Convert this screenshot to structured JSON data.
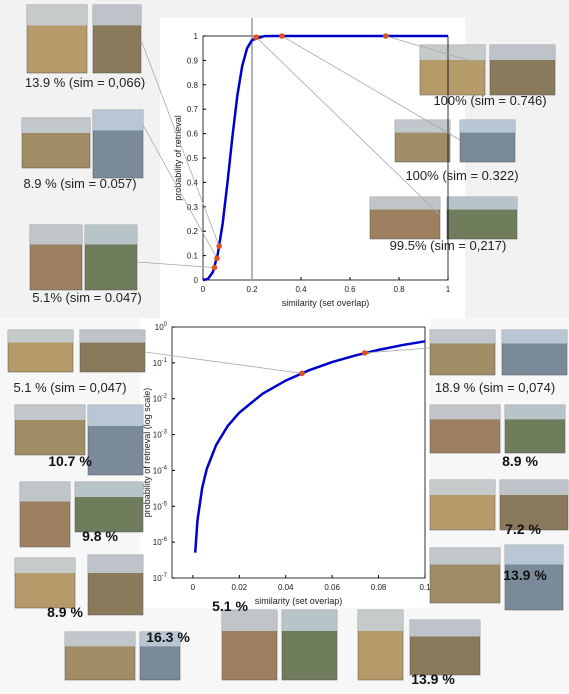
{
  "chart_data": [
    {
      "type": "line",
      "xlabel": "similarity (set overlap)",
      "ylabel": "probability of retrieval",
      "xlim": [
        0,
        1
      ],
      "ylim": [
        0,
        1
      ],
      "xticks": [
        0,
        0.2,
        0.4,
        0.6,
        0.8,
        1
      ],
      "yticks": [
        0,
        0.1,
        0.2,
        0.3,
        0.4,
        0.5,
        0.6,
        0.7,
        0.8,
        0.9,
        1
      ],
      "vline": 0.2,
      "series": [
        {
          "color": "#0000cc",
          "x": [
            0,
            0.02,
            0.04,
            0.06,
            0.08,
            0.1,
            0.12,
            0.14,
            0.16,
            0.18,
            0.2,
            0.25,
            0.3,
            0.4,
            0.5,
            0.6,
            0.7,
            0.8,
            0.9,
            1
          ],
          "values": [
            0,
            0.004,
            0.032,
            0.105,
            0.23,
            0.4,
            0.587,
            0.755,
            0.877,
            0.95,
            0.983,
            0.9997,
            1,
            1,
            1,
            1,
            1,
            1,
            1,
            1
          ]
        }
      ],
      "points": {
        "color": "#e05020",
        "x": [
          0.066,
          0.057,
          0.047,
          0.746,
          0.322,
          0.217
        ],
        "values": [
          0.139,
          0.089,
          0.051,
          1,
          1,
          0.995
        ]
      },
      "annotations": [
        "13.9 % (sim = 0,066)",
        "8.9 % (sim = 0.057)",
        "5.1% (sim = 0.047)",
        "100% (sim = 0.746)",
        "100% (sim = 0.322)",
        "99.5% (sim = 0,217)"
      ]
    },
    {
      "type": "line",
      "log_y": true,
      "xlabel": "similarity (set overlap)",
      "ylabel": "probability of retrieval (log scale)",
      "xlim": [
        -0.009,
        0.1
      ],
      "ylim": [
        1e-07,
        1
      ],
      "xticks": [
        0,
        0.02,
        0.04,
        0.06,
        0.08,
        0.1
      ],
      "yticks": [
        {
          "value": 1,
          "label": "10",
          "exponent": "0"
        },
        {
          "value": 0.1,
          "label": "10",
          "exponent": "-1"
        },
        {
          "value": 0.01,
          "label": "10",
          "exponent": "-2"
        },
        {
          "value": 0.001,
          "label": "10",
          "exponent": "-3"
        },
        {
          "value": 0.0001,
          "label": "10",
          "exponent": "-4"
        },
        {
          "value": 1e-05,
          "label": "10",
          "exponent": "-5"
        },
        {
          "value": 1e-06,
          "label": "10",
          "exponent": "-6"
        },
        {
          "value": 1e-07,
          "label": "10",
          "exponent": "-7"
        }
      ],
      "series": [
        {
          "color": "#0000cc",
          "x": [
            0.001,
            0.002,
            0.004,
            0.006,
            0.01,
            0.015,
            0.02,
            0.03,
            0.04,
            0.05,
            0.06,
            0.07,
            0.08,
            0.09,
            0.1
          ],
          "values": [
            5.1e-07,
            4.1e-06,
            3.3e-05,
            0.00011,
            0.00051,
            0.00173,
            0.0041,
            0.0137,
            0.032,
            0.062,
            0.105,
            0.161,
            0.23,
            0.31,
            0.4
          ]
        }
      ],
      "points": {
        "color": "#e05020",
        "x": [
          0.047,
          0.074
        ],
        "values": [
          0.051,
          0.189
        ]
      },
      "annotations": [
        "5.1 % (sim = 0,047)",
        "10.7 %",
        "9.8 %",
        "8.9 %",
        "16.3 %",
        "5.1 %",
        "13.9 %",
        "18.9 % (sim = 0,074)",
        "8.9 %",
        "7.2 %",
        "13.9 %"
      ]
    }
  ]
}
